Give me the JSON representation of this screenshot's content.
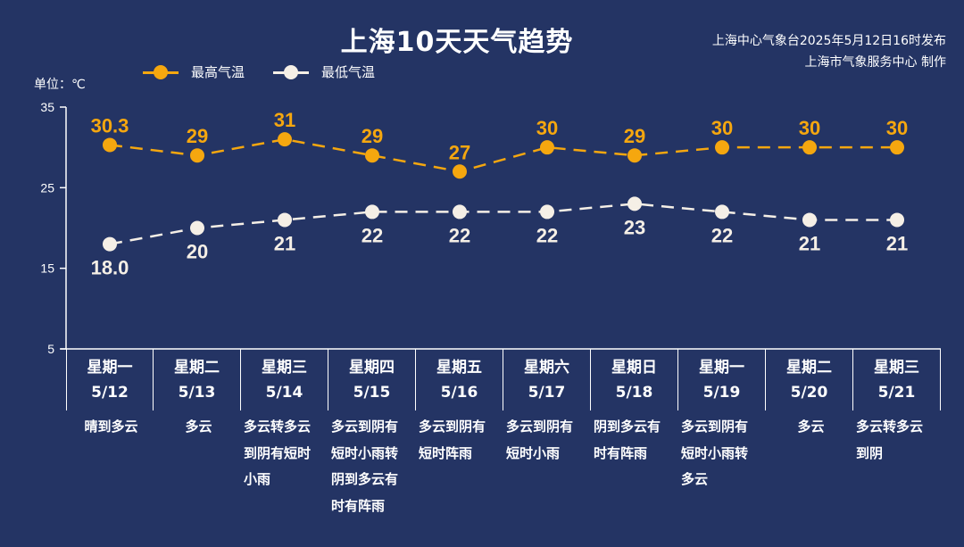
{
  "header": {
    "title": "上海10天天气趋势",
    "issuer_line1": "上海中心气象台2025年5月12日16时发布",
    "issuer_line2": "上海市气象服务中心 制作"
  },
  "legend": {
    "high_label": "最高气温",
    "low_label": "最低气温"
  },
  "unit_label": "单位：℃",
  "colors": {
    "background": "#243464",
    "high": "#F5A70F",
    "low": "#F5EFE6",
    "axis": "#FFFFFF"
  },
  "chart_data": {
    "type": "line",
    "title": "上海10天天气趋势",
    "xlabel": "",
    "ylabel": "单位：℃",
    "ylim": [
      5,
      35
    ],
    "yticks": [
      5,
      15,
      25,
      35
    ],
    "grid": false,
    "legend_position": "top",
    "categories": [
      "5/12",
      "5/13",
      "5/14",
      "5/15",
      "5/16",
      "5/17",
      "5/18",
      "5/19",
      "5/20",
      "5/21"
    ],
    "series": [
      {
        "name": "最高气温",
        "values": [
          30.3,
          29,
          31,
          29,
          27,
          30,
          29,
          30,
          30,
          30
        ],
        "labels": [
          "30.3",
          "29",
          "31",
          "29",
          "27",
          "30",
          "29",
          "30",
          "30",
          "30"
        ]
      },
      {
        "name": "最低气温",
        "values": [
          18.0,
          20,
          21,
          22,
          22,
          22,
          23,
          22,
          21,
          21
        ],
        "labels": [
          "18.0",
          "20",
          "21",
          "22",
          "22",
          "22",
          "23",
          "22",
          "21",
          "21"
        ]
      }
    ]
  },
  "days": [
    {
      "weekday": "星期一",
      "date": "5/12",
      "weather": [
        "晴到多云"
      ]
    },
    {
      "weekday": "星期二",
      "date": "5/13",
      "weather": [
        "多云"
      ]
    },
    {
      "weekday": "星期三",
      "date": "5/14",
      "weather": [
        "多云转多云",
        "到阴有短时",
        "小雨"
      ]
    },
    {
      "weekday": "星期四",
      "date": "5/15",
      "weather": [
        "多云到阴有",
        "短时小雨转",
        "阴到多云有",
        "时有阵雨"
      ]
    },
    {
      "weekday": "星期五",
      "date": "5/16",
      "weather": [
        "多云到阴有",
        "短时阵雨"
      ]
    },
    {
      "weekday": "星期六",
      "date": "5/17",
      "weather": [
        "多云到阴有",
        "短时小雨"
      ]
    },
    {
      "weekday": "星期日",
      "date": "5/18",
      "weather": [
        "阴到多云有",
        "时有阵雨"
      ]
    },
    {
      "weekday": "星期一",
      "date": "5/19",
      "weather": [
        "多云到阴有",
        "短时小雨转",
        "多云"
      ]
    },
    {
      "weekday": "星期二",
      "date": "5/20",
      "weather": [
        "多云"
      ]
    },
    {
      "weekday": "星期三",
      "date": "5/21",
      "weather": [
        "多云转多云",
        "到阴"
      ]
    }
  ]
}
